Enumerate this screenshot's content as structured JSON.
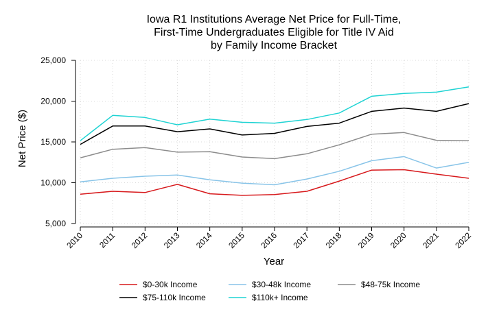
{
  "chart_data": {
    "type": "line",
    "title_lines": [
      "Iowa R1 Institutions Average Net Price for Full-Time,",
      "First-Time Undergraduates Eligible for Title IV Aid",
      "by Family Income Bracket"
    ],
    "xlabel": "Year",
    "ylabel": "Net Price ($)",
    "x": [
      "2010",
      "2011",
      "2012",
      "2013",
      "2014",
      "2015",
      "2016",
      "2017",
      "2018",
      "2019",
      "2020",
      "2021",
      "2022"
    ],
    "ylim": [
      5000,
      25000
    ],
    "yticks": [
      5000,
      10000,
      15000,
      20000,
      25000
    ],
    "ytick_labels": [
      "5,000",
      "10,000",
      "15,000",
      "20,000",
      "25,000"
    ],
    "grid": true,
    "legend_position": "bottom",
    "series": [
      {
        "name": "$0-30k Income",
        "color": "#d7191c",
        "values": [
          8600,
          8950,
          8800,
          9800,
          8650,
          8450,
          8550,
          8950,
          10200,
          11550,
          11600,
          11050,
          10550
        ]
      },
      {
        "name": "$30-48k Income",
        "color": "#88c4e8",
        "values": [
          10100,
          10550,
          10800,
          10950,
          10350,
          9950,
          9750,
          10450,
          11400,
          12700,
          13200,
          11800,
          12500
        ]
      },
      {
        "name": "$48-75k Income",
        "color": "#8c8c8c",
        "values": [
          13050,
          14100,
          14300,
          13750,
          13800,
          13150,
          12950,
          13550,
          14650,
          15950,
          16150,
          15200,
          15150
        ]
      },
      {
        "name": "$75-110k Income",
        "color": "#000000",
        "values": [
          14700,
          16950,
          16950,
          16250,
          16600,
          15850,
          16050,
          16900,
          17300,
          18750,
          19150,
          18750,
          19700
        ]
      },
      {
        "name": "$110k+ Income",
        "color": "#1fd3d3",
        "values": [
          15150,
          18250,
          18000,
          17100,
          17800,
          17400,
          17300,
          17750,
          18550,
          20600,
          20950,
          21100,
          21750
        ]
      }
    ]
  }
}
